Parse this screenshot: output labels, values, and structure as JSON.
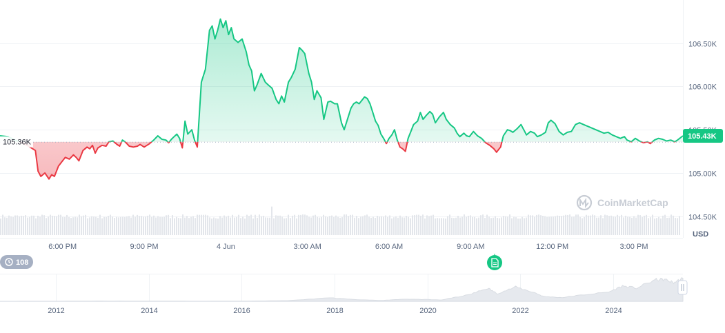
{
  "chart_data": {
    "type": "area",
    "currency": "USD",
    "y_ticks": [
      "104.50K",
      "105.00K",
      "105.50K",
      "106.00K",
      "106.50K"
    ],
    "y_tick_values": [
      104500,
      105000,
      105500,
      106000,
      106500
    ],
    "ylim": [
      104250,
      107000
    ],
    "x_ticks": [
      "6:00 PM",
      "9:00 PM",
      "4 Jun",
      "3:00 AM",
      "6:00 AM",
      "9:00 AM",
      "12:00 PM",
      "3:00 PM"
    ],
    "x_tick_hours": [
      2,
      5,
      8,
      11,
      14,
      17,
      20,
      23
    ],
    "x_range_hours": [
      -0.3,
      24.8
    ],
    "reference_price": 105360,
    "reference_label": "105.36K",
    "current_price_label": "105.43K",
    "series": [
      {
        "values": [
          [
            -0.3,
            105430
          ],
          [
            0.0,
            105420
          ],
          [
            0.25,
            105380
          ],
          [
            0.5,
            105350
          ],
          [
            0.75,
            105310
          ],
          [
            1.0,
            105260
          ],
          [
            1.1,
            105020
          ],
          [
            1.2,
            104960
          ],
          [
            1.35,
            105000
          ],
          [
            1.5,
            104930
          ],
          [
            1.6,
            104980
          ],
          [
            1.7,
            104960
          ],
          [
            1.85,
            105080
          ],
          [
            2.0,
            105140
          ],
          [
            2.1,
            105180
          ],
          [
            2.25,
            105160
          ],
          [
            2.4,
            105210
          ],
          [
            2.5,
            105180
          ],
          [
            2.6,
            105140
          ],
          [
            2.75,
            105260
          ],
          [
            2.9,
            105300
          ],
          [
            3.0,
            105280
          ],
          [
            3.1,
            105320
          ],
          [
            3.2,
            105230
          ],
          [
            3.3,
            105290
          ],
          [
            3.45,
            105320
          ],
          [
            3.6,
            105310
          ],
          [
            3.7,
            105360
          ],
          [
            3.85,
            105370
          ],
          [
            4.0,
            105330
          ],
          [
            4.1,
            105310
          ],
          [
            4.2,
            105380
          ],
          [
            4.3,
            105360
          ],
          [
            4.45,
            105310
          ],
          [
            4.6,
            105300
          ],
          [
            4.75,
            105310
          ],
          [
            4.85,
            105330
          ],
          [
            5.0,
            105300
          ],
          [
            5.1,
            105320
          ],
          [
            5.2,
            105340
          ],
          [
            5.35,
            105380
          ],
          [
            5.5,
            105430
          ],
          [
            5.65,
            105390
          ],
          [
            5.8,
            105380
          ],
          [
            5.9,
            105350
          ],
          [
            6.0,
            105390
          ],
          [
            6.1,
            105420
          ],
          [
            6.2,
            105450
          ],
          [
            6.3,
            105400
          ],
          [
            6.4,
            105290
          ],
          [
            6.5,
            105600
          ],
          [
            6.6,
            105450
          ],
          [
            6.75,
            105500
          ],
          [
            6.85,
            105380
          ],
          [
            6.95,
            105300
          ],
          [
            7.1,
            106050
          ],
          [
            7.25,
            106200
          ],
          [
            7.4,
            106650
          ],
          [
            7.5,
            106700
          ],
          [
            7.6,
            106550
          ],
          [
            7.7,
            106650
          ],
          [
            7.8,
            106780
          ],
          [
            7.9,
            106680
          ],
          [
            8.0,
            106760
          ],
          [
            8.1,
            106600
          ],
          [
            8.2,
            106680
          ],
          [
            8.3,
            106550
          ],
          [
            8.45,
            106510
          ],
          [
            8.6,
            106550
          ],
          [
            8.75,
            106400
          ],
          [
            8.85,
            106250
          ],
          [
            8.95,
            106180
          ],
          [
            9.05,
            105950
          ],
          [
            9.15,
            106020
          ],
          [
            9.3,
            106150
          ],
          [
            9.45,
            106050
          ],
          [
            9.55,
            106020
          ],
          [
            9.7,
            105980
          ],
          [
            9.85,
            105850
          ],
          [
            9.95,
            105800
          ],
          [
            10.05,
            105890
          ],
          [
            10.15,
            105820
          ],
          [
            10.3,
            106050
          ],
          [
            10.4,
            106100
          ],
          [
            10.55,
            106200
          ],
          [
            10.7,
            106450
          ],
          [
            10.8,
            106420
          ],
          [
            10.9,
            106380
          ],
          [
            11.05,
            106150
          ],
          [
            11.15,
            106050
          ],
          [
            11.25,
            105850
          ],
          [
            11.35,
            105950
          ],
          [
            11.5,
            105870
          ],
          [
            11.6,
            105620
          ],
          [
            11.75,
            105820
          ],
          [
            11.85,
            105830
          ],
          [
            12.0,
            105800
          ],
          [
            12.1,
            105800
          ],
          [
            12.25,
            105580
          ],
          [
            12.35,
            105500
          ],
          [
            12.45,
            105600
          ],
          [
            12.6,
            105750
          ],
          [
            12.7,
            105800
          ],
          [
            12.8,
            105820
          ],
          [
            12.9,
            105800
          ],
          [
            13.0,
            105840
          ],
          [
            13.1,
            105880
          ],
          [
            13.2,
            105860
          ],
          [
            13.3,
            105800
          ],
          [
            13.4,
            105700
          ],
          [
            13.5,
            105600
          ],
          [
            13.6,
            105550
          ],
          [
            13.7,
            105450
          ],
          [
            13.8,
            105400
          ],
          [
            13.9,
            105340
          ],
          [
            14.0,
            105400
          ],
          [
            14.1,
            105440
          ],
          [
            14.2,
            105500
          ],
          [
            14.3,
            105380
          ],
          [
            14.4,
            105300
          ],
          [
            14.5,
            105280
          ],
          [
            14.6,
            105250
          ],
          [
            14.7,
            105400
          ],
          [
            14.8,
            105480
          ],
          [
            14.9,
            105560
          ],
          [
            15.05,
            105600
          ],
          [
            15.15,
            105700
          ],
          [
            15.25,
            105620
          ],
          [
            15.35,
            105660
          ],
          [
            15.5,
            105710
          ],
          [
            15.6,
            105680
          ],
          [
            15.7,
            105580
          ],
          [
            15.85,
            105650
          ],
          [
            16.0,
            105700
          ],
          [
            16.1,
            105620
          ],
          [
            16.25,
            105560
          ],
          [
            16.4,
            105520
          ],
          [
            16.5,
            105460
          ],
          [
            16.6,
            105420
          ],
          [
            16.75,
            105460
          ],
          [
            16.85,
            105430
          ],
          [
            16.95,
            105420
          ],
          [
            17.1,
            105480
          ],
          [
            17.25,
            105430
          ],
          [
            17.4,
            105400
          ],
          [
            17.55,
            105350
          ],
          [
            17.7,
            105320
          ],
          [
            17.85,
            105280
          ],
          [
            17.95,
            105240
          ],
          [
            18.1,
            105300
          ],
          [
            18.2,
            105430
          ],
          [
            18.35,
            105500
          ],
          [
            18.45,
            105490
          ],
          [
            18.55,
            105470
          ],
          [
            18.7,
            105510
          ],
          [
            18.85,
            105560
          ],
          [
            18.95,
            105500
          ],
          [
            19.05,
            105440
          ],
          [
            19.2,
            105480
          ],
          [
            19.35,
            105460
          ],
          [
            19.45,
            105420
          ],
          [
            19.6,
            105440
          ],
          [
            19.75,
            105470
          ],
          [
            19.85,
            105580
          ],
          [
            19.95,
            105610
          ],
          [
            20.1,
            105570
          ],
          [
            20.25,
            105480
          ],
          [
            20.4,
            105440
          ],
          [
            20.55,
            105470
          ],
          [
            20.7,
            105480
          ],
          [
            20.85,
            105560
          ],
          [
            21.0,
            105580
          ],
          [
            21.15,
            105560
          ],
          [
            21.3,
            105540
          ],
          [
            21.45,
            105520
          ],
          [
            21.6,
            105500
          ],
          [
            21.75,
            105480
          ],
          [
            21.9,
            105460
          ],
          [
            22.05,
            105470
          ],
          [
            22.2,
            105440
          ],
          [
            22.35,
            105420
          ],
          [
            22.5,
            105400
          ],
          [
            22.65,
            105420
          ],
          [
            22.75,
            105380
          ],
          [
            22.9,
            105360
          ],
          [
            23.05,
            105400
          ],
          [
            23.2,
            105370
          ],
          [
            23.35,
            105350
          ],
          [
            23.5,
            105360
          ],
          [
            23.6,
            105340
          ],
          [
            23.75,
            105380
          ],
          [
            23.9,
            105400
          ],
          [
            24.05,
            105390
          ],
          [
            24.2,
            105370
          ],
          [
            24.35,
            105380
          ],
          [
            24.5,
            105360
          ],
          [
            24.6,
            105380
          ],
          [
            24.8,
            105430
          ]
        ]
      }
    ],
    "volume_seed": 7,
    "navigator": {
      "x_ticks": [
        "2012",
        "2014",
        "2016",
        "2018",
        "2020",
        "2022",
        "2024"
      ],
      "x_tick_years": [
        2012,
        2014,
        2016,
        2018,
        2020,
        2022,
        2024
      ],
      "x_range_years": [
        2010.8,
        2025.5
      ],
      "history": [
        [
          2010.8,
          100
        ],
        [
          2012,
          300
        ],
        [
          2013,
          1200
        ],
        [
          2014,
          900
        ],
        [
          2015,
          400
        ],
        [
          2016,
          600
        ],
        [
          2017,
          3000
        ],
        [
          2017.9,
          16000
        ],
        [
          2018.5,
          7000
        ],
        [
          2019,
          4000
        ],
        [
          2019.5,
          10000
        ],
        [
          2020,
          8000
        ],
        [
          2020.3,
          6000
        ],
        [
          2020.9,
          30000
        ],
        [
          2021.3,
          60000
        ],
        [
          2021.5,
          35000
        ],
        [
          2021.9,
          65000
        ],
        [
          2022.3,
          40000
        ],
        [
          2022.5,
          22000
        ],
        [
          2022.9,
          17000
        ],
        [
          2023.3,
          28000
        ],
        [
          2023.9,
          42000
        ],
        [
          2024.2,
          70000
        ],
        [
          2024.5,
          60000
        ],
        [
          2024.9,
          98000
        ],
        [
          2025.1,
          100000
        ],
        [
          2025.3,
          85000
        ],
        [
          2025.5,
          105000
        ]
      ],
      "history_ylim": [
        0,
        120000
      ]
    }
  },
  "watermark": "CoinMarketCap",
  "events_badge": {
    "count": "108"
  },
  "colors": {
    "up": "#16c784",
    "down": "#ea3943",
    "grid": "#eff2f5",
    "axis_text": "#58667e",
    "badge_gray": "#a6b0c3",
    "watermark": "#c7ccd4"
  }
}
